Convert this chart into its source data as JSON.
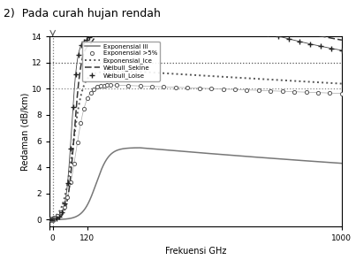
{
  "title": "2)  Pada curah hujan rendah",
  "xlabel": "Frekuensi GHz",
  "ylabel": "Redaman (dB/km)",
  "xlim": [
    -10,
    1000
  ],
  "ylim": [
    -0.5,
    14
  ],
  "yticks": [
    0,
    2,
    4,
    6,
    8,
    10,
    12,
    14
  ],
  "xtick_vals": [
    -10,
    0,
    120,
    1000
  ],
  "xtick_labels": [
    "",
    "0",
    "120",
    "1000"
  ],
  "vline_x": 0,
  "hline_y1": 12.0,
  "hline_y2": 10.0,
  "legend_labels": [
    "Exponensial III",
    "Exponensial >5%",
    "Exponensial_Ice",
    "Weibull_Sekine",
    "Weibull_Loise"
  ]
}
